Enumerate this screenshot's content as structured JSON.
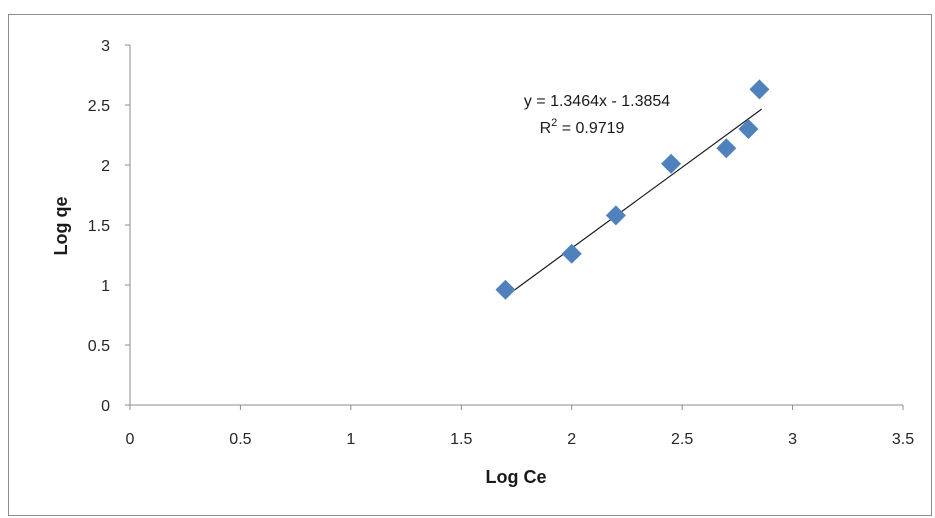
{
  "chart_data": {
    "type": "scatter",
    "xlabel": "Log Ce",
    "ylabel": "Log qe",
    "xlim": [
      0,
      3.5
    ],
    "ylim": [
      0,
      3
    ],
    "x_ticks": [
      "0",
      "0.5",
      "1",
      "1.5",
      "2",
      "2.5",
      "3",
      "3.5"
    ],
    "y_ticks": [
      "0",
      "0.5",
      "1",
      "1.5",
      "2",
      "2.5",
      "3"
    ],
    "grid": false,
    "marker": "diamond",
    "marker_color": "#4f81bd",
    "trendline_color": "#1a1a1a",
    "series": [
      {
        "x": [
          1.7,
          2.0,
          2.2,
          2.45,
          2.7,
          2.8,
          2.85
        ],
        "y": [
          0.96,
          1.26,
          1.58,
          2.01,
          2.14,
          2.3,
          2.63
        ]
      }
    ],
    "trendline": {
      "slope": 1.3464,
      "intercept": -1.3854,
      "x_range": [
        1.73,
        2.86
      ],
      "equation": "y = 1.3464x - 1.3854",
      "r2_label": "R",
      "r2_sup": "2",
      "r2_value": " = 0.9719"
    }
  }
}
